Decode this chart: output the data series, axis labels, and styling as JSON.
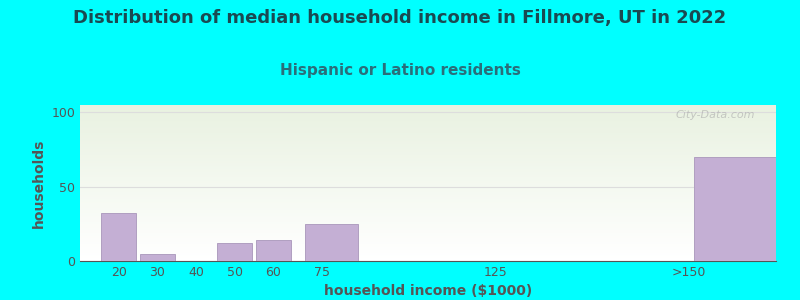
{
  "title": "Distribution of median household income in Fillmore, UT in 2022",
  "subtitle": "Hispanic or Latino residents",
  "xlabel": "household income ($1000)",
  "ylabel": "households",
  "background_color": "#00FFFF",
  "bar_color": "#c4afd4",
  "bar_edge_color": "#b09fc0",
  "yticks": [
    0,
    50,
    100
  ],
  "ylim": [
    0,
    105
  ],
  "categories": [
    "20",
    "30",
    "40",
    "50",
    "60",
    "75",
    "125",
    ">150"
  ],
  "values": [
    32,
    5,
    0,
    12,
    14,
    25,
    0,
    70
  ],
  "x_positions": [
    10,
    20,
    30,
    40,
    50,
    62.5,
    100,
    162.5
  ],
  "bar_widths": [
    10,
    10,
    10,
    10,
    10,
    15,
    25,
    35
  ],
  "x_tick_positions": [
    15,
    25,
    35,
    45,
    55,
    67.5,
    112.5,
    162.5
  ],
  "xlim": [
    5,
    185
  ],
  "title_fontsize": 13,
  "subtitle_fontsize": 11,
  "axis_label_fontsize": 10,
  "tick_fontsize": 9,
  "title_color": "#1a4a52",
  "subtitle_color": "#2a6e7a",
  "axis_label_color": "#555555",
  "tick_color": "#555555",
  "watermark": "City-Data.com",
  "grid_color": "#dddddd",
  "plot_bg_green": [
    0.91,
    0.945,
    0.878
  ],
  "plot_bg_white": [
    1.0,
    1.0,
    1.0
  ]
}
